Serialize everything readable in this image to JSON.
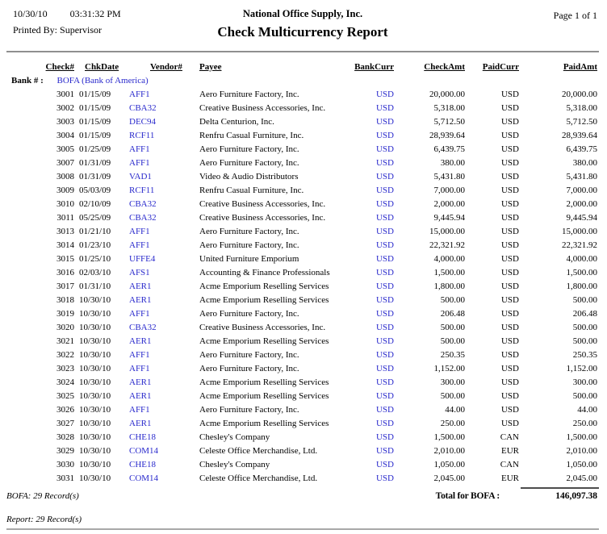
{
  "page": {
    "printed_date": "10/30/10",
    "printed_time": "03:31:32 PM",
    "printed_by_label": "Printed By:",
    "printed_by": "Supervisor",
    "company": "National Office Supply, Inc.",
    "title": "Check Multicurrency Report",
    "page_label": "Page 1 of 1"
  },
  "colors": {
    "link_blue": "#2929cc"
  },
  "table": {
    "headers": [
      "Check#",
      "ChkDate",
      "Vendor#",
      "Payee",
      "BankCurr",
      "CheckAmt",
      "PaidCurr",
      "PaidAmt"
    ],
    "bank_label": "Bank # :",
    "bank_value": "BOFA (Bank of America)",
    "rows": [
      {
        "check": "3001",
        "date": "01/15/09",
        "vendor": "AFF1",
        "payee": "Aero Furniture Factory, Inc.",
        "bank_curr": "USD",
        "check_amt": "20,000.00",
        "paid_curr": "USD",
        "paid_amt": "20,000.00"
      },
      {
        "check": "3002",
        "date": "01/15/09",
        "vendor": "CBA32",
        "payee": "Creative Business Accessories, Inc.",
        "bank_curr": "USD",
        "check_amt": "5,318.00",
        "paid_curr": "USD",
        "paid_amt": "5,318.00"
      },
      {
        "check": "3003",
        "date": "01/15/09",
        "vendor": "DEC94",
        "payee": "Delta Centurion, Inc.",
        "bank_curr": "USD",
        "check_amt": "5,712.50",
        "paid_curr": "USD",
        "paid_amt": "5,712.50"
      },
      {
        "check": "3004",
        "date": "01/15/09",
        "vendor": "RCF11",
        "payee": "Renfru Casual Furniture, Inc.",
        "bank_curr": "USD",
        "check_amt": "28,939.64",
        "paid_curr": "USD",
        "paid_amt": "28,939.64"
      },
      {
        "check": "3005",
        "date": "01/25/09",
        "vendor": "AFF1",
        "payee": "Aero Furniture Factory, Inc.",
        "bank_curr": "USD",
        "check_amt": "6,439.75",
        "paid_curr": "USD",
        "paid_amt": "6,439.75"
      },
      {
        "check": "3007",
        "date": "01/31/09",
        "vendor": "AFF1",
        "payee": "Aero Furniture Factory, Inc.",
        "bank_curr": "USD",
        "check_amt": "380.00",
        "paid_curr": "USD",
        "paid_amt": "380.00"
      },
      {
        "check": "3008",
        "date": "01/31/09",
        "vendor": "VAD1",
        "payee": "Video & Audio Distributors",
        "bank_curr": "USD",
        "check_amt": "5,431.80",
        "paid_curr": "USD",
        "paid_amt": "5,431.80"
      },
      {
        "check": "3009",
        "date": "05/03/09",
        "vendor": "RCF11",
        "payee": "Renfru Casual Furniture, Inc.",
        "bank_curr": "USD",
        "check_amt": "7,000.00",
        "paid_curr": "USD",
        "paid_amt": "7,000.00"
      },
      {
        "check": "3010",
        "date": "02/10/09",
        "vendor": "CBA32",
        "payee": "Creative Business Accessories, Inc.",
        "bank_curr": "USD",
        "check_amt": "2,000.00",
        "paid_curr": "USD",
        "paid_amt": "2,000.00"
      },
      {
        "check": "3011",
        "date": "05/25/09",
        "vendor": "CBA32",
        "payee": "Creative Business Accessories, Inc.",
        "bank_curr": "USD",
        "check_amt": "9,445.94",
        "paid_curr": "USD",
        "paid_amt": "9,445.94"
      },
      {
        "check": "3013",
        "date": "01/21/10",
        "vendor": "AFF1",
        "payee": "Aero Furniture Factory, Inc.",
        "bank_curr": "USD",
        "check_amt": "15,000.00",
        "paid_curr": "USD",
        "paid_amt": "15,000.00"
      },
      {
        "check": "3014",
        "date": "01/23/10",
        "vendor": "AFF1",
        "payee": "Aero Furniture Factory, Inc.",
        "bank_curr": "USD",
        "check_amt": "22,321.92",
        "paid_curr": "USD",
        "paid_amt": "22,321.92"
      },
      {
        "check": "3015",
        "date": "01/25/10",
        "vendor": "UFFE4",
        "payee": "United Furniture Emporium",
        "bank_curr": "USD",
        "check_amt": "4,000.00",
        "paid_curr": "USD",
        "paid_amt": "4,000.00"
      },
      {
        "check": "3016",
        "date": "02/03/10",
        "vendor": "AFS1",
        "payee": "Accounting & Finance Professionals",
        "bank_curr": "USD",
        "check_amt": "1,500.00",
        "paid_curr": "USD",
        "paid_amt": "1,500.00"
      },
      {
        "check": "3017",
        "date": "01/31/10",
        "vendor": "AER1",
        "payee": "Acme Emporium Reselling Services",
        "bank_curr": "USD",
        "check_amt": "1,800.00",
        "paid_curr": "USD",
        "paid_amt": "1,800.00"
      },
      {
        "check": "3018",
        "date": "10/30/10",
        "vendor": "AER1",
        "payee": "Acme Emporium Reselling Services",
        "bank_curr": "USD",
        "check_amt": "500.00",
        "paid_curr": "USD",
        "paid_amt": "500.00"
      },
      {
        "check": "3019",
        "date": "10/30/10",
        "vendor": "AFF1",
        "payee": "Aero Furniture Factory, Inc.",
        "bank_curr": "USD",
        "check_amt": "206.48",
        "paid_curr": "USD",
        "paid_amt": "206.48"
      },
      {
        "check": "3020",
        "date": "10/30/10",
        "vendor": "CBA32",
        "payee": "Creative Business Accessories, Inc.",
        "bank_curr": "USD",
        "check_amt": "500.00",
        "paid_curr": "USD",
        "paid_amt": "500.00"
      },
      {
        "check": "3021",
        "date": "10/30/10",
        "vendor": "AER1",
        "payee": "Acme Emporium Reselling Services",
        "bank_curr": "USD",
        "check_amt": "500.00",
        "paid_curr": "USD",
        "paid_amt": "500.00"
      },
      {
        "check": "3022",
        "date": "10/30/10",
        "vendor": "AFF1",
        "payee": "Aero Furniture Factory, Inc.",
        "bank_curr": "USD",
        "check_amt": "250.35",
        "paid_curr": "USD",
        "paid_amt": "250.35"
      },
      {
        "check": "3023",
        "date": "10/30/10",
        "vendor": "AFF1",
        "payee": "Aero Furniture Factory, Inc.",
        "bank_curr": "USD",
        "check_amt": "1,152.00",
        "paid_curr": "USD",
        "paid_amt": "1,152.00"
      },
      {
        "check": "3024",
        "date": "10/30/10",
        "vendor": "AER1",
        "payee": "Acme Emporium Reselling Services",
        "bank_curr": "USD",
        "check_amt": "300.00",
        "paid_curr": "USD",
        "paid_amt": "300.00"
      },
      {
        "check": "3025",
        "date": "10/30/10",
        "vendor": "AER1",
        "payee": "Acme Emporium Reselling Services",
        "bank_curr": "USD",
        "check_amt": "500.00",
        "paid_curr": "USD",
        "paid_amt": "500.00"
      },
      {
        "check": "3026",
        "date": "10/30/10",
        "vendor": "AFF1",
        "payee": "Aero Furniture Factory, Inc.",
        "bank_curr": "USD",
        "check_amt": "44.00",
        "paid_curr": "USD",
        "paid_amt": "44.00"
      },
      {
        "check": "3027",
        "date": "10/30/10",
        "vendor": "AER1",
        "payee": "Acme Emporium Reselling Services",
        "bank_curr": "USD",
        "check_amt": "250.00",
        "paid_curr": "USD",
        "paid_amt": "250.00"
      },
      {
        "check": "3028",
        "date": "10/30/10",
        "vendor": "CHE18",
        "payee": "Chesley's Company",
        "bank_curr": "USD",
        "check_amt": "1,500.00",
        "paid_curr": "CAN",
        "paid_amt": "1,500.00"
      },
      {
        "check": "3029",
        "date": "10/30/10",
        "vendor": "COM14",
        "payee": "Celeste Office Merchandise, Ltd.",
        "bank_curr": "USD",
        "check_amt": "2,010.00",
        "paid_curr": "EUR",
        "paid_amt": "2,010.00"
      },
      {
        "check": "3030",
        "date": "10/30/10",
        "vendor": "CHE18",
        "payee": "Chesley's Company",
        "bank_curr": "USD",
        "check_amt": "1,050.00",
        "paid_curr": "CAN",
        "paid_amt": "1,050.00"
      },
      {
        "check": "3031",
        "date": "10/30/10",
        "vendor": "COM14",
        "payee": "Celeste Office Merchandise, Ltd.",
        "bank_curr": "USD",
        "check_amt": "2,045.00",
        "paid_curr": "EUR",
        "paid_amt": "2,045.00"
      }
    ]
  },
  "summary": {
    "total_label": "Total for BOFA :",
    "total_amount": "146,097.38",
    "bank_count": "BOFA: 29 Record(s)",
    "report_count": "Report: 29 Record(s)"
  }
}
